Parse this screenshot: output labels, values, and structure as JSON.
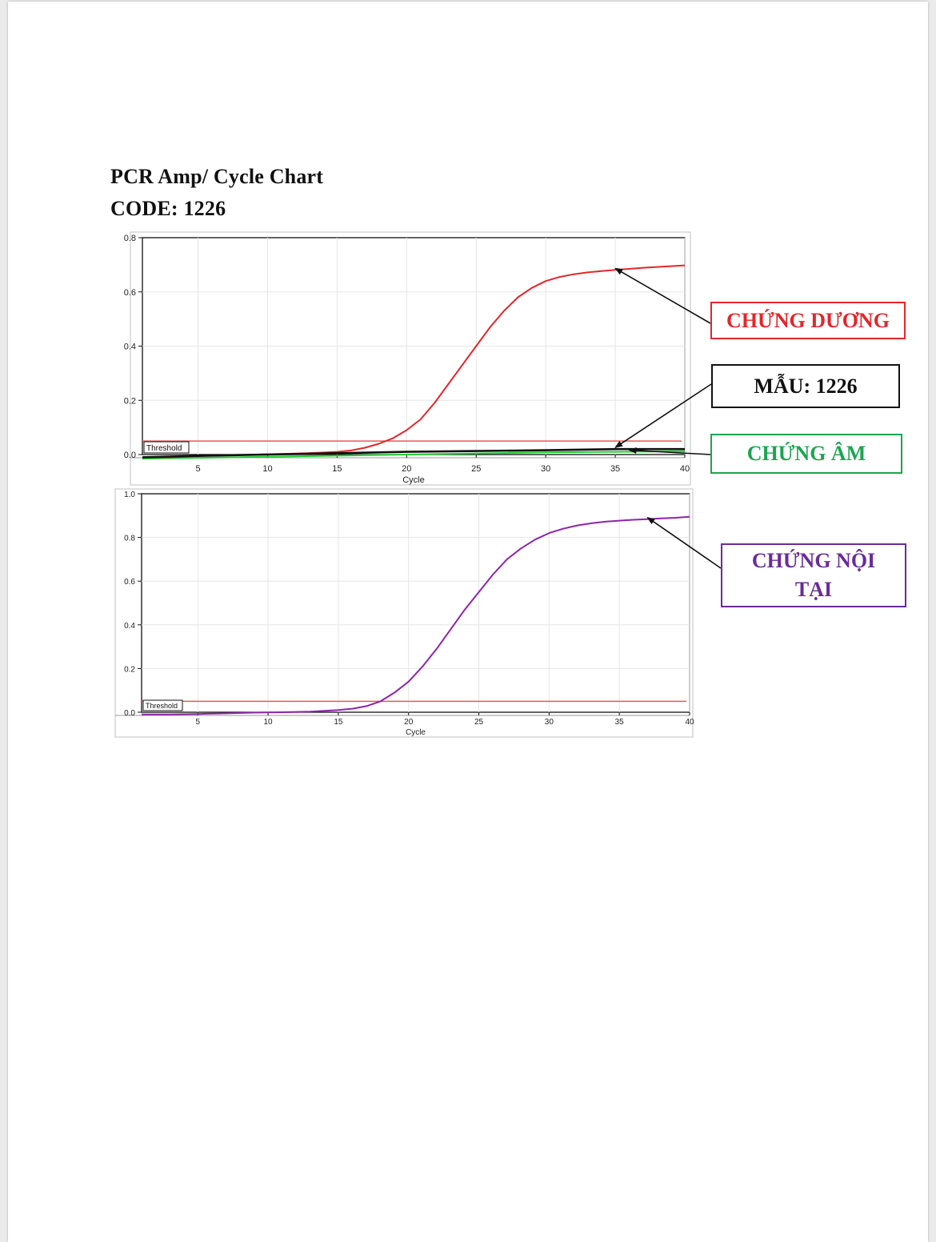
{
  "document": {
    "title": "PCR Amp/ Cycle Chart",
    "code_label": "CODE: 1226"
  },
  "callouts": {
    "positive": {
      "text": "CHỨNG DƯƠNG",
      "color": "#e3262b"
    },
    "sample": {
      "text": "MẪU: 1226",
      "color": "#111111"
    },
    "negative": {
      "text": "CHỨNG ÂM",
      "color": "#1aa650"
    },
    "internal": {
      "text": "CHỨNG NỘI TẠI",
      "color": "#6a2b9a"
    }
  },
  "chart_data": [
    {
      "type": "line",
      "xlabel": "Cycle",
      "ylabel": "",
      "xlim": [
        1,
        40
      ],
      "ylim": [
        0.0,
        0.8
      ],
      "xticks": [
        5,
        10,
        15,
        20,
        25,
        30,
        35,
        40
      ],
      "yticks": [
        0.0,
        0.2,
        0.4,
        0.6,
        0.8
      ],
      "grid": true,
      "threshold": {
        "label": "Threshold",
        "value": 0.05,
        "color": "#e8585e"
      },
      "series": [
        {
          "key": "positive",
          "color": "#e3262b",
          "x": [
            1,
            3,
            5,
            7,
            9,
            11,
            13,
            15,
            16,
            17,
            18,
            19,
            20,
            21,
            22,
            23,
            24,
            25,
            26,
            27,
            28,
            29,
            30,
            31,
            32,
            33,
            34,
            35,
            36,
            37,
            38,
            39,
            40
          ],
          "y": [
            -0.01,
            -0.01,
            -0.005,
            -0.002,
            0.0,
            0.002,
            0.005,
            0.01,
            0.015,
            0.025,
            0.04,
            0.06,
            0.09,
            0.13,
            0.19,
            0.26,
            0.33,
            0.4,
            0.47,
            0.53,
            0.58,
            0.615,
            0.64,
            0.655,
            0.665,
            0.672,
            0.677,
            0.681,
            0.685,
            0.689,
            0.692,
            0.695,
            0.698
          ]
        },
        {
          "key": "sample",
          "color": "#111111",
          "x": [
            1,
            5,
            10,
            15,
            20,
            25,
            30,
            35,
            40
          ],
          "y": [
            -0.01,
            -0.005,
            0.0,
            0.005,
            0.01,
            0.013,
            0.016,
            0.02,
            0.02
          ]
        },
        {
          "key": "negative",
          "color": "#22cc33",
          "x": [
            1,
            5,
            10,
            15,
            20,
            25,
            30,
            35,
            40
          ],
          "y": [
            -0.015,
            -0.012,
            -0.008,
            -0.004,
            0.0,
            0.004,
            0.008,
            0.01,
            0.012
          ]
        }
      ]
    },
    {
      "type": "line",
      "xlabel": "Cycle",
      "ylabel": "",
      "xlim": [
        1,
        40
      ],
      "ylim": [
        0.0,
        1.0
      ],
      "xticks": [
        5,
        10,
        15,
        20,
        25,
        30,
        35,
        40
      ],
      "yticks": [
        0.0,
        0.2,
        0.4,
        0.6,
        0.8,
        1.0
      ],
      "grid": true,
      "threshold": {
        "label": "Threshold",
        "value": 0.05,
        "color": "#e8585e"
      },
      "series": [
        {
          "key": "internal",
          "color": "#8e24aa",
          "x": [
            1,
            3,
            5,
            7,
            9,
            11,
            13,
            15,
            16,
            17,
            18,
            19,
            20,
            21,
            22,
            23,
            24,
            25,
            26,
            27,
            28,
            29,
            30,
            31,
            32,
            33,
            34,
            35,
            36,
            37,
            38,
            39,
            40
          ],
          "y": [
            -0.01,
            -0.01,
            -0.008,
            -0.005,
            -0.002,
            0.0,
            0.003,
            0.01,
            0.016,
            0.028,
            0.05,
            0.09,
            0.14,
            0.21,
            0.29,
            0.38,
            0.47,
            0.55,
            0.63,
            0.7,
            0.75,
            0.79,
            0.82,
            0.84,
            0.855,
            0.865,
            0.872,
            0.877,
            0.881,
            0.884,
            0.887,
            0.89,
            0.895
          ]
        }
      ]
    }
  ]
}
